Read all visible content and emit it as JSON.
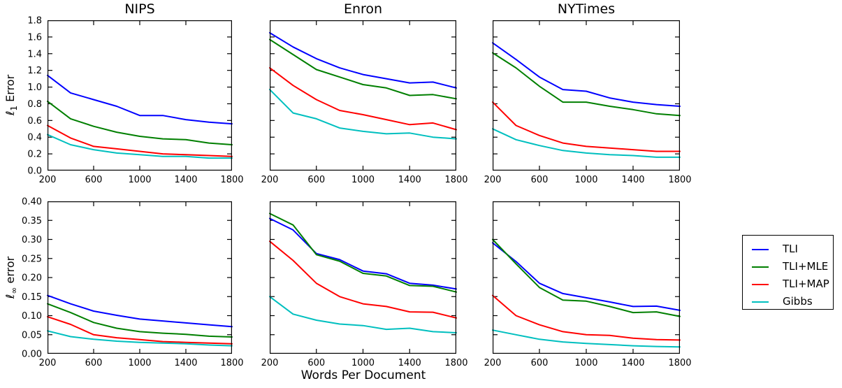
{
  "figure": {
    "xlabel": "Words Per Document",
    "ylabels": [
      {
        "symbol": "ℓ",
        "sub": "1",
        "rest": " Error"
      },
      {
        "symbol": "ℓ",
        "sub": "∞",
        "rest": " error"
      }
    ],
    "col_titles": [
      "NIPS",
      "Enron",
      "NYTimes"
    ]
  },
  "legend": {
    "items": [
      {
        "label": "TLI",
        "color": "#0000ff"
      },
      {
        "label": "TLI+MLE",
        "color": "#007f00"
      },
      {
        "label": "TLI+MAP",
        "color": "#ff0000"
      },
      {
        "label": "Gibbs",
        "color": "#00bfbf"
      }
    ]
  },
  "chart_data": [
    {
      "type": "line",
      "title": "NIPS",
      "row": 0,
      "col": 0,
      "xlim": [
        200,
        1800
      ],
      "ylim": [
        0,
        1.8
      ],
      "x": [
        200,
        400,
        600,
        800,
        1000,
        1200,
        1400,
        1600,
        1800
      ],
      "xticks": [
        200,
        600,
        1000,
        1400,
        1800
      ],
      "xtick_labels": [
        "200",
        "600",
        "1000",
        "1400",
        "1800"
      ],
      "yticks": [
        0,
        0.2,
        0.4,
        0.6,
        0.8,
        1.0,
        1.2,
        1.4,
        1.6,
        1.8
      ],
      "ytick_labels": [
        "0.0",
        "0.2",
        "0.4",
        "0.6",
        "0.8",
        "1.0",
        "1.2",
        "1.4",
        "1.6",
        "1.8"
      ],
      "show_ytick_labels": true,
      "series": [
        {
          "name": "TLI",
          "color": "#0000ff",
          "values": [
            1.14,
            0.93,
            0.85,
            0.77,
            0.66,
            0.66,
            0.61,
            0.58,
            0.56
          ]
        },
        {
          "name": "TLI+MLE",
          "color": "#007f00",
          "values": [
            0.83,
            0.62,
            0.53,
            0.46,
            0.41,
            0.38,
            0.37,
            0.33,
            0.31
          ]
        },
        {
          "name": "TLI+MAP",
          "color": "#ff0000",
          "values": [
            0.54,
            0.39,
            0.29,
            0.26,
            0.23,
            0.2,
            0.19,
            0.18,
            0.17
          ]
        },
        {
          "name": "Gibbs",
          "color": "#00bfbf",
          "values": [
            0.43,
            0.31,
            0.25,
            0.21,
            0.19,
            0.17,
            0.17,
            0.15,
            0.15
          ]
        }
      ]
    },
    {
      "type": "line",
      "title": "Enron",
      "row": 0,
      "col": 1,
      "xlim": [
        200,
        1800
      ],
      "ylim": [
        0,
        1.8
      ],
      "x": [
        200,
        400,
        600,
        800,
        1000,
        1200,
        1400,
        1600,
        1800
      ],
      "xticks": [
        200,
        600,
        1000,
        1400,
        1800
      ],
      "xtick_labels": [
        "200",
        "600",
        "1000",
        "1400",
        "1800"
      ],
      "yticks": [
        0,
        0.2,
        0.4,
        0.6,
        0.8,
        1.0,
        1.2,
        1.4,
        1.6,
        1.8
      ],
      "ytick_labels": [
        "0.0",
        "0.2",
        "0.4",
        "0.6",
        "0.8",
        "1.0",
        "1.2",
        "1.4",
        "1.6",
        "1.8"
      ],
      "show_ytick_labels": false,
      "series": [
        {
          "name": "TLI",
          "color": "#0000ff",
          "values": [
            1.65,
            1.48,
            1.34,
            1.23,
            1.15,
            1.1,
            1.05,
            1.06,
            0.99
          ]
        },
        {
          "name": "TLI+MLE",
          "color": "#007f00",
          "values": [
            1.57,
            1.39,
            1.21,
            1.12,
            1.03,
            0.99,
            0.9,
            0.91,
            0.86
          ]
        },
        {
          "name": "TLI+MAP",
          "color": "#ff0000",
          "values": [
            1.23,
            1.02,
            0.85,
            0.72,
            0.67,
            0.61,
            0.55,
            0.57,
            0.49
          ]
        },
        {
          "name": "Gibbs",
          "color": "#00bfbf",
          "values": [
            0.97,
            0.69,
            0.62,
            0.51,
            0.47,
            0.44,
            0.45,
            0.4,
            0.38
          ]
        }
      ]
    },
    {
      "type": "line",
      "title": "NYTimes",
      "row": 0,
      "col": 2,
      "xlim": [
        200,
        1800
      ],
      "ylim": [
        0,
        1.8
      ],
      "x": [
        200,
        400,
        600,
        800,
        1000,
        1200,
        1400,
        1600,
        1800
      ],
      "xticks": [
        200,
        600,
        1000,
        1400,
        1800
      ],
      "xtick_labels": [
        "200",
        "600",
        "1000",
        "1400",
        "1800"
      ],
      "yticks": [
        0,
        0.2,
        0.4,
        0.6,
        0.8,
        1.0,
        1.2,
        1.4,
        1.6,
        1.8
      ],
      "ytick_labels": [
        "0.0",
        "0.2",
        "0.4",
        "0.6",
        "0.8",
        "1.0",
        "1.2",
        "1.4",
        "1.6",
        "1.8"
      ],
      "show_ytick_labels": false,
      "series": [
        {
          "name": "TLI",
          "color": "#0000ff",
          "values": [
            1.53,
            1.33,
            1.12,
            0.97,
            0.95,
            0.87,
            0.82,
            0.79,
            0.77
          ]
        },
        {
          "name": "TLI+MLE",
          "color": "#007f00",
          "values": [
            1.41,
            1.23,
            1.01,
            0.82,
            0.82,
            0.77,
            0.73,
            0.68,
            0.66
          ]
        },
        {
          "name": "TLI+MAP",
          "color": "#ff0000",
          "values": [
            0.82,
            0.54,
            0.42,
            0.33,
            0.29,
            0.27,
            0.25,
            0.23,
            0.23
          ]
        },
        {
          "name": "Gibbs",
          "color": "#00bfbf",
          "values": [
            0.5,
            0.37,
            0.3,
            0.24,
            0.21,
            0.19,
            0.18,
            0.16,
            0.16
          ]
        }
      ]
    },
    {
      "type": "line",
      "title": "",
      "row": 1,
      "col": 0,
      "xlim": [
        200,
        1800
      ],
      "ylim": [
        0,
        0.4
      ],
      "x": [
        200,
        400,
        600,
        800,
        1000,
        1200,
        1400,
        1600,
        1800
      ],
      "xticks": [
        200,
        600,
        1000,
        1400,
        1800
      ],
      "xtick_labels": [
        "200",
        "600",
        "1000",
        "1400",
        "1800"
      ],
      "yticks": [
        0,
        0.05,
        0.1,
        0.15,
        0.2,
        0.25,
        0.3,
        0.35,
        0.4
      ],
      "ytick_labels": [
        "0.00",
        "0.05",
        "0.10",
        "0.15",
        "0.20",
        "0.25",
        "0.30",
        "0.35",
        "0.40"
      ],
      "show_ytick_labels": true,
      "series": [
        {
          "name": "TLI",
          "color": "#0000ff",
          "values": [
            0.153,
            0.131,
            0.112,
            0.101,
            0.091,
            0.086,
            0.081,
            0.076,
            0.071
          ]
        },
        {
          "name": "TLI+MLE",
          "color": "#007f00",
          "values": [
            0.131,
            0.108,
            0.082,
            0.067,
            0.058,
            0.054,
            0.051,
            0.046,
            0.044
          ]
        },
        {
          "name": "TLI+MAP",
          "color": "#ff0000",
          "values": [
            0.097,
            0.077,
            0.05,
            0.042,
            0.037,
            0.032,
            0.03,
            0.028,
            0.026
          ]
        },
        {
          "name": "Gibbs",
          "color": "#00bfbf",
          "values": [
            0.06,
            0.045,
            0.038,
            0.033,
            0.03,
            0.028,
            0.026,
            0.023,
            0.021
          ]
        }
      ]
    },
    {
      "type": "line",
      "title": "",
      "row": 1,
      "col": 1,
      "xlim": [
        200,
        1800
      ],
      "ylim": [
        0,
        0.4
      ],
      "x": [
        200,
        400,
        600,
        800,
        1000,
        1200,
        1400,
        1600,
        1800
      ],
      "xticks": [
        200,
        600,
        1000,
        1400,
        1800
      ],
      "xtick_labels": [
        "200",
        "600",
        "1000",
        "1400",
        "1800"
      ],
      "yticks": [
        0,
        0.05,
        0.1,
        0.15,
        0.2,
        0.25,
        0.3,
        0.35,
        0.4
      ],
      "ytick_labels": [
        "0.00",
        "0.05",
        "0.10",
        "0.15",
        "0.20",
        "0.25",
        "0.30",
        "0.35",
        "0.40"
      ],
      "show_ytick_labels": false,
      "series": [
        {
          "name": "TLI",
          "color": "#0000ff",
          "values": [
            0.355,
            0.325,
            0.263,
            0.247,
            0.217,
            0.21,
            0.185,
            0.18,
            0.17
          ]
        },
        {
          "name": "TLI+MLE",
          "color": "#007f00",
          "values": [
            0.368,
            0.338,
            0.26,
            0.243,
            0.211,
            0.204,
            0.179,
            0.177,
            0.162
          ]
        },
        {
          "name": "TLI+MAP",
          "color": "#ff0000",
          "values": [
            0.295,
            0.245,
            0.185,
            0.15,
            0.131,
            0.124,
            0.11,
            0.109,
            0.094
          ]
        },
        {
          "name": "Gibbs",
          "color": "#00bfbf",
          "values": [
            0.15,
            0.104,
            0.088,
            0.078,
            0.074,
            0.064,
            0.067,
            0.058,
            0.055
          ]
        }
      ]
    },
    {
      "type": "line",
      "title": "",
      "row": 1,
      "col": 2,
      "xlim": [
        200,
        1800
      ],
      "ylim": [
        0,
        0.4
      ],
      "x": [
        200,
        400,
        600,
        800,
        1000,
        1200,
        1400,
        1600,
        1800
      ],
      "xticks": [
        200,
        600,
        1000,
        1400,
        1800
      ],
      "xtick_labels": [
        "200",
        "600",
        "1000",
        "1400",
        "1800"
      ],
      "yticks": [
        0,
        0.05,
        0.1,
        0.15,
        0.2,
        0.25,
        0.3,
        0.35,
        0.4
      ],
      "ytick_labels": [
        "0.00",
        "0.05",
        "0.10",
        "0.15",
        "0.20",
        "0.25",
        "0.30",
        "0.35",
        "0.40"
      ],
      "show_ytick_labels": false,
      "series": [
        {
          "name": "TLI",
          "color": "#0000ff",
          "values": [
            0.291,
            0.242,
            0.185,
            0.158,
            0.147,
            0.136,
            0.124,
            0.125,
            0.114
          ]
        },
        {
          "name": "TLI+MLE",
          "color": "#007f00",
          "values": [
            0.3,
            0.236,
            0.174,
            0.141,
            0.138,
            0.124,
            0.108,
            0.11,
            0.098
          ]
        },
        {
          "name": "TLI+MAP",
          "color": "#ff0000",
          "values": [
            0.153,
            0.1,
            0.076,
            0.058,
            0.05,
            0.048,
            0.041,
            0.037,
            0.036
          ]
        },
        {
          "name": "Gibbs",
          "color": "#00bfbf",
          "values": [
            0.062,
            0.05,
            0.038,
            0.031,
            0.027,
            0.024,
            0.021,
            0.019,
            0.018
          ]
        }
      ]
    }
  ]
}
